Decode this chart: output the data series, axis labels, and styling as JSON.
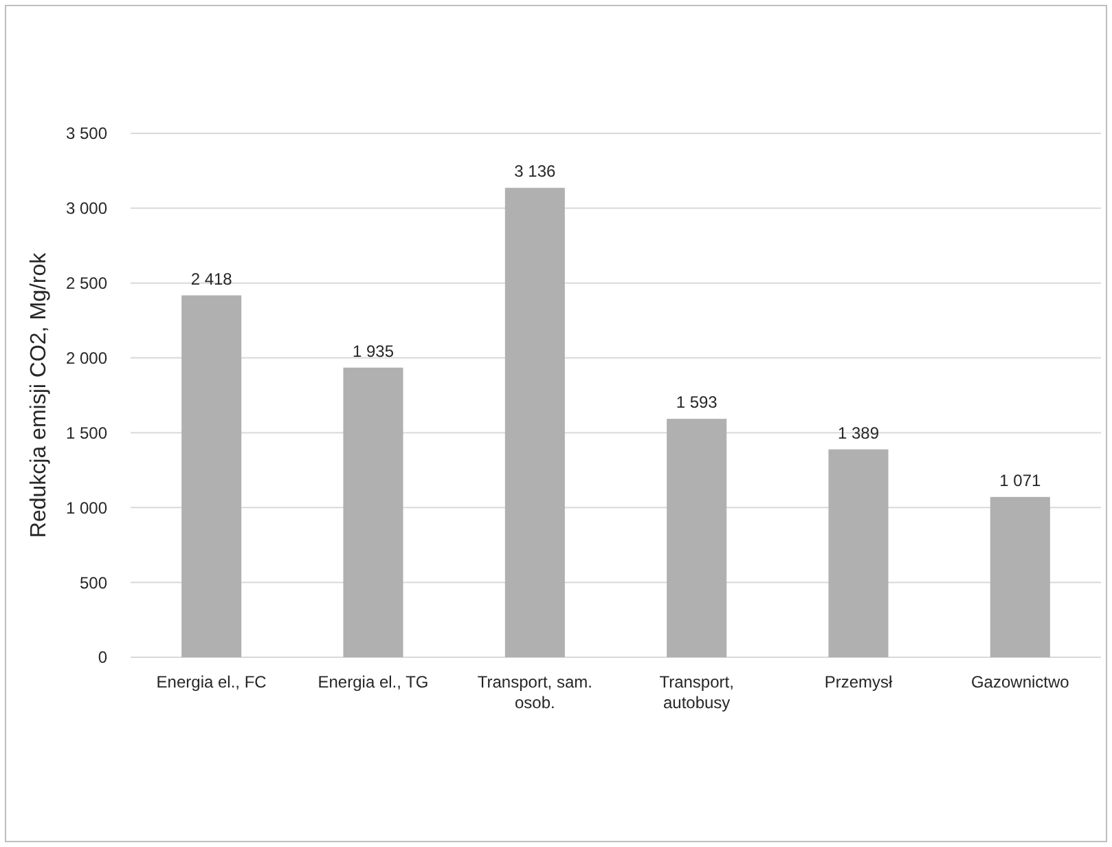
{
  "chart_data": {
    "type": "bar",
    "ylabel": "Redukcja emisji CO2, Mg/rok",
    "categories": [
      "Energia el., FC",
      "Energia el., TG",
      "Transport, sam. osob.",
      "Transport, autobusy",
      "Przemysł",
      "Gazownictwo"
    ],
    "values": [
      2418,
      1935,
      3136,
      1593,
      1389,
      1071
    ],
    "value_labels": [
      "2 418",
      "1 935",
      "3 136",
      "1 593",
      "1 389",
      "1 071"
    ],
    "color": "#b0b0b0",
    "ylim": [
      0,
      3500
    ],
    "yticks": [
      {
        "value": 0,
        "label": "0"
      },
      {
        "value": 500,
        "label": "500"
      },
      {
        "value": 1000,
        "label": "1 000"
      },
      {
        "value": 1500,
        "label": "1 500"
      },
      {
        "value": 2000,
        "label": "2 000"
      },
      {
        "value": 2500,
        "label": "2 500"
      },
      {
        "value": 3000,
        "label": "3 000"
      },
      {
        "value": 3500,
        "label": "3 500"
      }
    ],
    "grid": "y"
  }
}
